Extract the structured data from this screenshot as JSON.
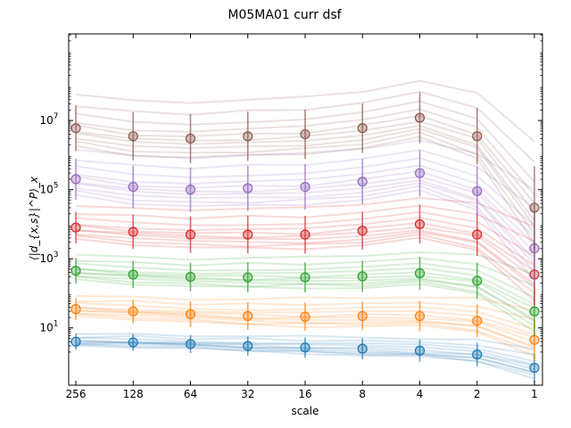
{
  "chart_data": {
    "type": "line",
    "title": "M05MA01 curr dsf",
    "xlabel": "scale",
    "ylabel": "⟨|d_{x,s}|^P⟩_x",
    "yscale": "log",
    "ylim": [
      0.22,
      3200000000
    ],
    "x": [
      "256",
      "128",
      "64",
      "32",
      "16",
      "8",
      "4",
      "2",
      "1"
    ],
    "y_ticks": [
      {
        "value": 10,
        "base": "10",
        "exp": "1"
      },
      {
        "value": 1000,
        "base": "10",
        "exp": "3"
      },
      {
        "value": 100000,
        "base": "10",
        "exp": "5"
      },
      {
        "value": 10000000,
        "base": "10",
        "exp": "7"
      }
    ],
    "series": [
      {
        "color": "#1f77b4",
        "values": [
          4.0,
          3.8,
          3.4,
          3.0,
          2.7,
          2.5,
          2.2,
          1.7,
          0.7
        ],
        "spread": [
          1.3,
          1.35,
          1.4,
          1.45,
          1.5,
          1.55,
          1.6,
          1.7,
          2.0
        ]
      },
      {
        "color": "#ff7f0e",
        "values": [
          35,
          30,
          25,
          22,
          21,
          22,
          22,
          16,
          4.5
        ],
        "spread": [
          1.6,
          1.7,
          1.8,
          1.9,
          2.0,
          2.0,
          2.1,
          2.3,
          3.0
        ]
      },
      {
        "color": "#2ca02c",
        "values": [
          450,
          350,
          300,
          290,
          290,
          310,
          380,
          230,
          30
        ],
        "spread": [
          1.8,
          1.9,
          2.0,
          2.1,
          2.1,
          2.2,
          2.3,
          2.6,
          4.0
        ]
      },
      {
        "color": "#d62728",
        "values": [
          8000,
          6000,
          5000,
          5000,
          5000,
          6500,
          10000,
          5000,
          350
        ],
        "spread": [
          2.2,
          2.4,
          2.6,
          2.7,
          2.7,
          2.7,
          2.8,
          3.2,
          6.0
        ]
      },
      {
        "color": "#9467bd",
        "values": [
          200000,
          120000,
          100000,
          110000,
          120000,
          170000,
          300000,
          90000,
          2000
        ],
        "spread": [
          3.0,
          3.2,
          3.4,
          3.5,
          3.5,
          3.5,
          3.6,
          4.0,
          9.0
        ]
      },
      {
        "color": "#8c564b",
        "values": [
          6000000,
          3500000,
          3000000,
          3500000,
          4000000,
          6000000,
          12000000,
          3500000,
          30000
        ],
        "spread": [
          3.5,
          3.8,
          4.0,
          4.0,
          4.0,
          4.0,
          4.2,
          5.0,
          12.0
        ]
      }
    ],
    "grid": false,
    "legend": "none"
  }
}
